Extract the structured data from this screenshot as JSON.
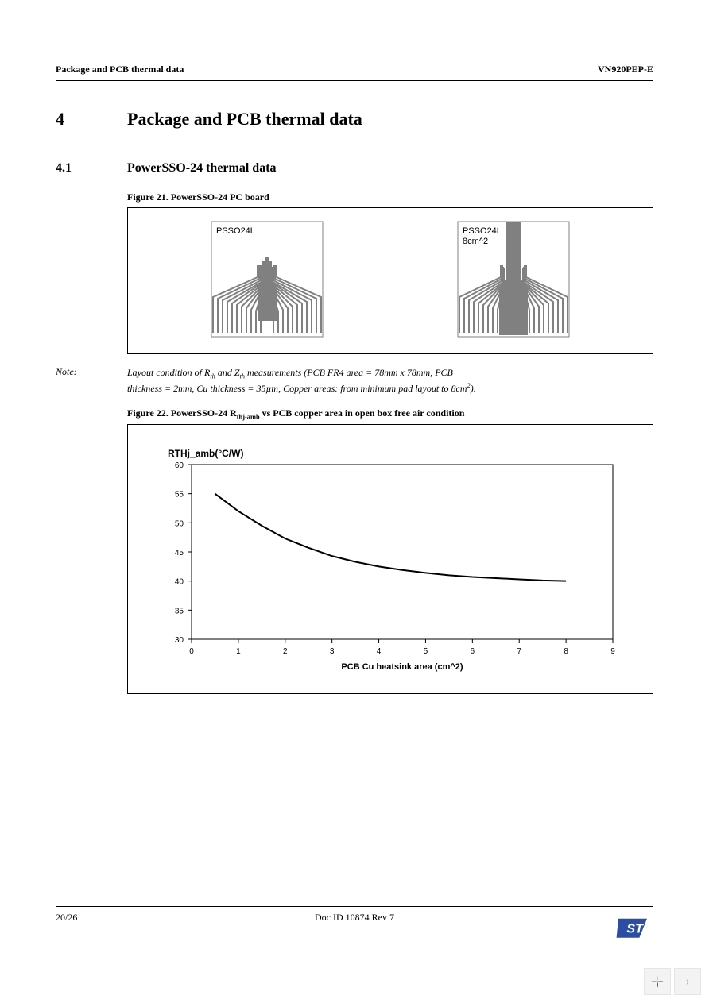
{
  "header": {
    "left": "Package and PCB thermal data",
    "right": "VN920PEP-E"
  },
  "section": {
    "num": "4",
    "title": "Package and PCB thermal data"
  },
  "subsection": {
    "num": "4.1",
    "title": "PowerSSO-24 thermal data"
  },
  "figure21": {
    "caption": "Figure 21. PowerSSO-24 PC board",
    "left_label": "PSSO24L",
    "right_label1": "PSSO24L",
    "right_label2": "8cm^2",
    "pcb_color": "#808080",
    "box_border": "#808080"
  },
  "note": {
    "label": "Note:",
    "line1": "Layout condition of R",
    "sub1": "th",
    "mid1": " and Z",
    "sub2": "th",
    "mid2": " measurements (PCB FR4 area = 78mm x 78mm, PCB",
    "line2": "thickness = 2mm, Cu thickness = 35µm, Copper areas: from minimum pad layout to 8cm",
    "sup": "2",
    "end": ")."
  },
  "figure22": {
    "caption_pre": "Figure 22. PowerSSO-24 R",
    "caption_sub": "thj-amb",
    "caption_post": " vs PCB copper area in open box free air condition"
  },
  "chart": {
    "type": "line",
    "ylabel": "RTHj_amb(°C/W)",
    "xlabel": "PCB Cu heatsink area (cm^2)",
    "xlim": [
      0,
      9
    ],
    "ylim": [
      30,
      60
    ],
    "xticks": [
      0,
      1,
      2,
      3,
      4,
      5,
      6,
      7,
      8,
      9
    ],
    "yticks": [
      30,
      35,
      40,
      45,
      50,
      55,
      60
    ],
    "x": [
      0.5,
      1.0,
      1.5,
      2.0,
      2.5,
      3.0,
      3.5,
      4.0,
      4.5,
      5.0,
      5.5,
      6.0,
      6.5,
      7.0,
      7.5,
      8.0
    ],
    "y": [
      55.0,
      52.0,
      49.5,
      47.3,
      45.7,
      44.3,
      43.3,
      42.5,
      41.9,
      41.4,
      41.0,
      40.7,
      40.5,
      40.3,
      40.1,
      40.0
    ],
    "line_color": "#000000",
    "line_width": 2.0,
    "axis_color": "#000000",
    "tick_color": "#000000",
    "tick_fontsize": 10,
    "label_fontsize": 11,
    "ylabel_fontsize": 12,
    "background_color": "#ffffff"
  },
  "footer": {
    "page": "20/26",
    "docid": "Doc ID 10874 Rev 7"
  },
  "logo_colors": {
    "blue": "#2b4ea0",
    "white": "#ffffff"
  },
  "nav_colors": {
    "y": "#f5d400",
    "g": "#8cc63f",
    "b": "#29abe2",
    "p": "#ec008c"
  }
}
